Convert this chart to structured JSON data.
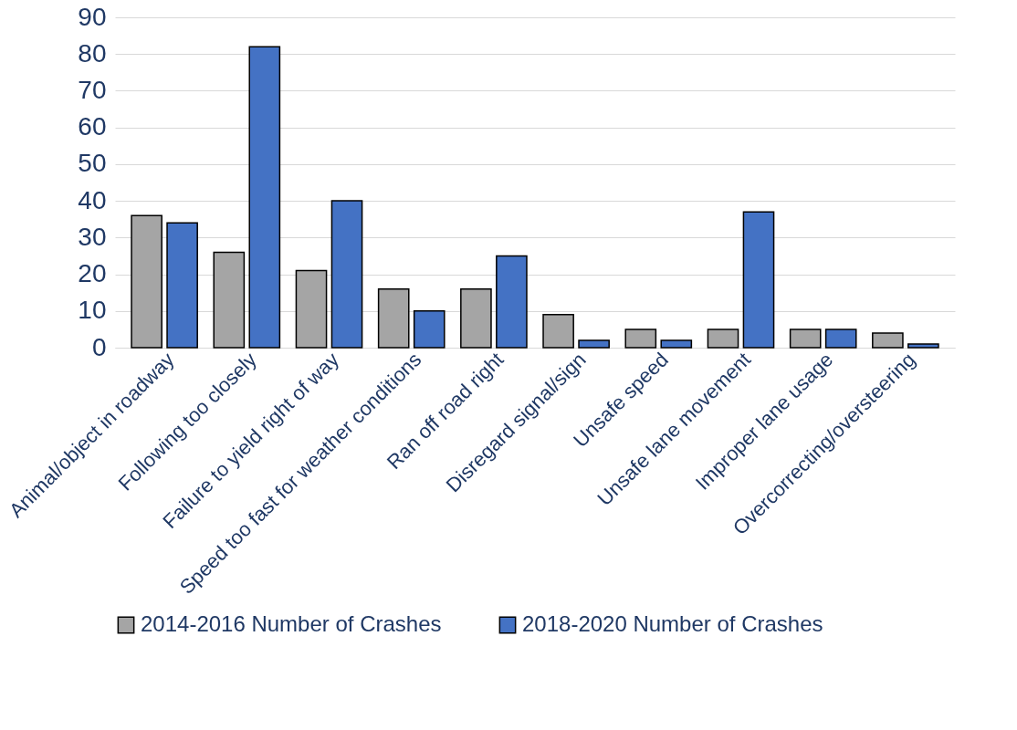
{
  "chart_data": {
    "type": "bar",
    "categories": [
      "Animal/object in roadway",
      "Following too closely",
      "Failure to yield right of way",
      "Speed too fast for weather conditions",
      "Ran off road right",
      "Disregard signal/sign",
      "Unsafe speed",
      "Unsafe lane movement",
      "Improper lane usage",
      "Overcorrecting/oversteering"
    ],
    "series": [
      {
        "name": "2014-2016 Number of Crashes",
        "color": "#a5a5a5",
        "values": [
          36,
          26,
          21,
          16,
          16,
          9,
          5,
          5,
          5,
          4
        ]
      },
      {
        "name": "2018-2020 Number of Crashes",
        "color": "#4472c4",
        "values": [
          34,
          82,
          40,
          10,
          25,
          2,
          2,
          37,
          5,
          1
        ]
      }
    ],
    "ylim": [
      0,
      90
    ],
    "yticks": [
      0,
      10,
      20,
      30,
      40,
      50,
      60,
      70,
      80,
      90
    ],
    "grid": "y",
    "legend": "bottom"
  }
}
